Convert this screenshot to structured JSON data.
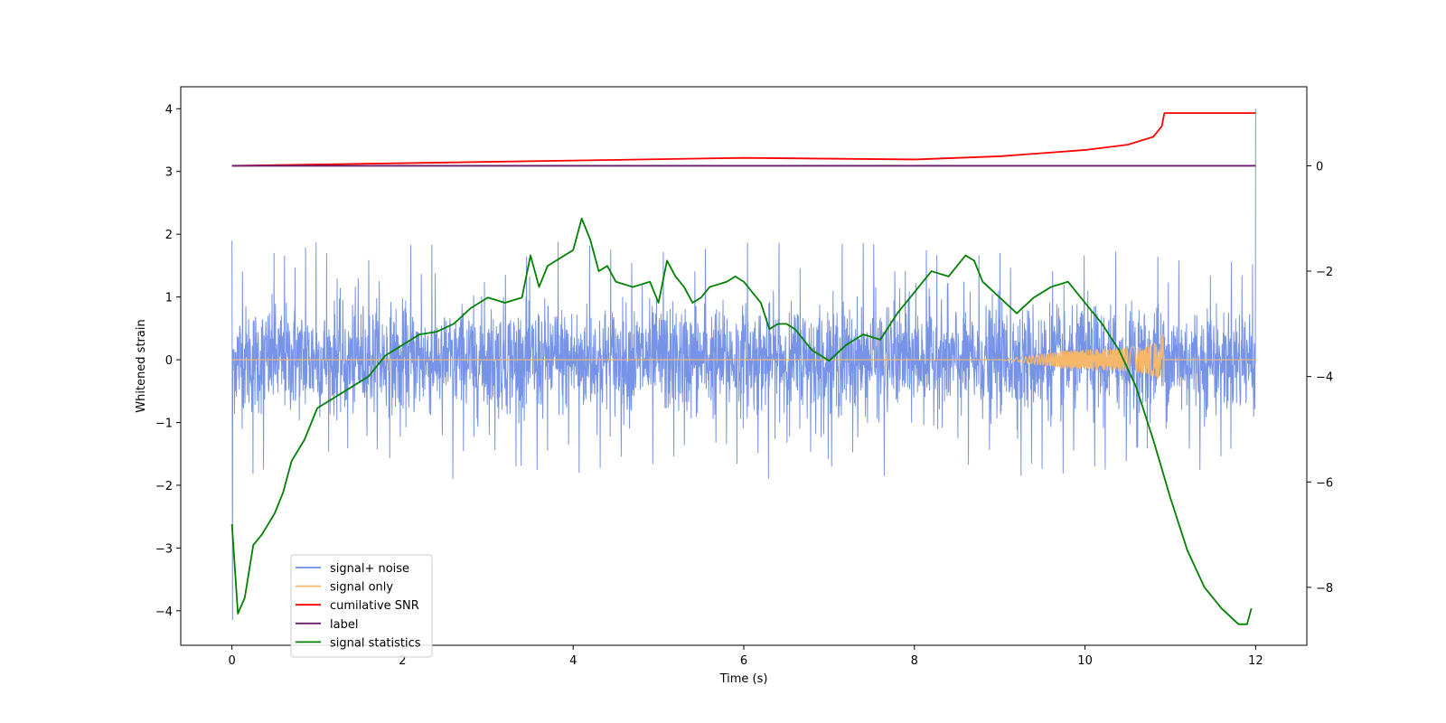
{
  "chart_data": {
    "type": "line",
    "xlabel": "Time (s)",
    "ylabel_left": "Whitened strain",
    "ylabel_right": "",
    "xlim": [
      -0.6,
      12.6
    ],
    "ylim_left": [
      -4.55,
      4.35
    ],
    "ylim_right": [
      -9.1,
      1.5
    ],
    "x_ticks": [
      0,
      2,
      4,
      6,
      8,
      10,
      12
    ],
    "y_ticks_left": [
      -4,
      -3,
      -2,
      -1,
      0,
      1,
      2,
      3,
      4
    ],
    "y_ticks_right": [
      -8,
      -6,
      -4,
      -2,
      0
    ],
    "grid": false,
    "legend_position": "lower-left",
    "series": [
      {
        "name": "signal+ noise",
        "axis": "left",
        "color": "#6f8de6",
        "note_envelope": {
          "x_range": [
            0,
            12
          ],
          "typical_amplitude": 1.0,
          "min": -4.15,
          "max": 4.0
        }
      },
      {
        "name": "signal only",
        "axis": "left",
        "color": "#f5b86a",
        "chirp": {
          "start": 9.0,
          "merger": 10.92,
          "peak_amplitude": 0.42
        }
      },
      {
        "name": "cumilative SNR",
        "axis": "right",
        "color": "#ff0000",
        "x": [
          0,
          2,
          4,
          6,
          8,
          9,
          10,
          10.5,
          10.8,
          10.9,
          10.93,
          11,
          12
        ],
        "y": [
          0.0,
          0.05,
          0.1,
          0.15,
          0.12,
          0.18,
          0.3,
          0.4,
          0.55,
          0.75,
          1.0,
          1.0,
          1.0
        ]
      },
      {
        "name": "label",
        "axis": "right",
        "color": "#6a1b6a",
        "x": [
          0,
          12
        ],
        "y": [
          0,
          0
        ]
      },
      {
        "name": "signal statistics",
        "axis": "right",
        "color": "#008000",
        "x": [
          0,
          0.07,
          0.15,
          0.25,
          0.35,
          0.5,
          0.6,
          0.7,
          0.85,
          1.0,
          1.2,
          1.4,
          1.6,
          1.8,
          2.0,
          2.2,
          2.4,
          2.6,
          2.8,
          3.0,
          3.2,
          3.4,
          3.5,
          3.6,
          3.7,
          3.8,
          3.9,
          4.0,
          4.1,
          4.2,
          4.3,
          4.4,
          4.5,
          4.7,
          4.9,
          5.0,
          5.1,
          5.2,
          5.3,
          5.4,
          5.5,
          5.6,
          5.8,
          5.9,
          6.0,
          6.1,
          6.2,
          6.3,
          6.4,
          6.5,
          6.6,
          6.8,
          7.0,
          7.2,
          7.4,
          7.6,
          7.8,
          8.0,
          8.2,
          8.4,
          8.6,
          8.7,
          8.8,
          9.0,
          9.2,
          9.4,
          9.6,
          9.8,
          10.0,
          10.2,
          10.4,
          10.6,
          10.8,
          11.0,
          11.2,
          11.4,
          11.6,
          11.8,
          11.9,
          11.95
        ],
        "y": [
          -6.8,
          -8.5,
          -8.2,
          -7.2,
          -7.0,
          -6.6,
          -6.2,
          -5.6,
          -5.2,
          -4.6,
          -4.4,
          -4.2,
          -4.0,
          -3.6,
          -3.4,
          -3.2,
          -3.15,
          -3.0,
          -2.7,
          -2.5,
          -2.6,
          -2.5,
          -1.7,
          -2.3,
          -1.9,
          -1.8,
          -1.7,
          -1.6,
          -1.0,
          -1.4,
          -2.0,
          -1.9,
          -2.2,
          -2.3,
          -2.2,
          -2.6,
          -1.8,
          -2.1,
          -2.3,
          -2.6,
          -2.5,
          -2.3,
          -2.2,
          -2.1,
          -2.2,
          -2.4,
          -2.6,
          -3.1,
          -3.0,
          -3.0,
          -3.1,
          -3.5,
          -3.7,
          -3.4,
          -3.2,
          -3.3,
          -2.8,
          -2.4,
          -2.0,
          -2.1,
          -1.7,
          -1.8,
          -2.2,
          -2.5,
          -2.8,
          -2.5,
          -2.3,
          -2.2,
          -2.6,
          -3.0,
          -3.5,
          -4.2,
          -5.2,
          -6.3,
          -7.3,
          -8.0,
          -8.4,
          -8.7,
          -8.7,
          -8.4
        ]
      }
    ]
  }
}
